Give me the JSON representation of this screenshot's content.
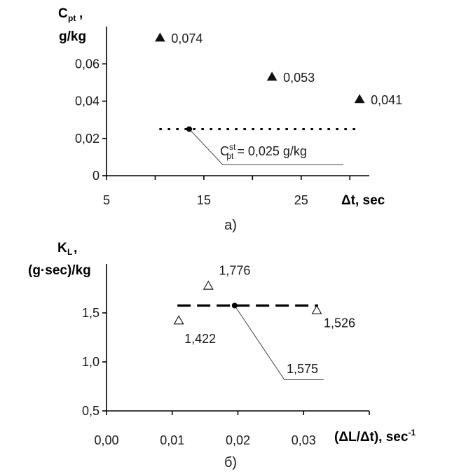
{
  "chart_data": [
    {
      "type": "scatter",
      "ylabel": [
        "C",
        "pt",
        "g/kg"
      ],
      "xlabel": "Δt, sec",
      "caption": "a)",
      "xlim": [
        5,
        32
      ],
      "ylim": [
        0,
        0.08
      ],
      "xticks": [
        "5",
        "15",
        "25"
      ],
      "yticks": [
        "0",
        "0,02",
        "0,04",
        "0,06"
      ],
      "points": [
        {
          "x": 10.5,
          "y": 0.074,
          "label": "0,074"
        },
        {
          "x": 22,
          "y": 0.053,
          "label": "0,053"
        },
        {
          "x": 31,
          "y": 0.041,
          "label": "0,041"
        }
      ],
      "reference_line": {
        "y": 0.025,
        "x_from": 10.5,
        "x_to": 31
      },
      "reference_point": {
        "x": 13.5,
        "y": 0.025
      },
      "annotation": {
        "base": "C",
        "sup": "st",
        "sub": "pt",
        "rest": " = 0,025 g/kg"
      },
      "marker_color": "#111111"
    },
    {
      "type": "scatter",
      "ylabel": [
        "K",
        "L",
        "(g·sec)/kg"
      ],
      "xlabel": [
        "(ΔL/Δt), sec",
        "-1"
      ],
      "caption": "б)",
      "xlim": [
        0,
        0.04
      ],
      "ylim": [
        0.5,
        2.0
      ],
      "xticks": [
        "0,00",
        "0,01",
        "0,02",
        "0,03"
      ],
      "yticks": [
        "0,5",
        "1,0",
        "1,5"
      ],
      "points": [
        {
          "x": 0.011,
          "y": 1.422,
          "label": "1,422"
        },
        {
          "x": 0.0155,
          "y": 1.776,
          "label": "1,776"
        },
        {
          "x": 0.032,
          "y": 1.526,
          "label": "1,526"
        }
      ],
      "reference_line": {
        "y": 1.575,
        "x_from": 0.011,
        "x_to": 0.032
      },
      "reference_point": {
        "x": 0.0195,
        "y": 1.575
      },
      "annotation": {
        "rest": "1,575"
      },
      "marker_color": "#111111"
    }
  ]
}
